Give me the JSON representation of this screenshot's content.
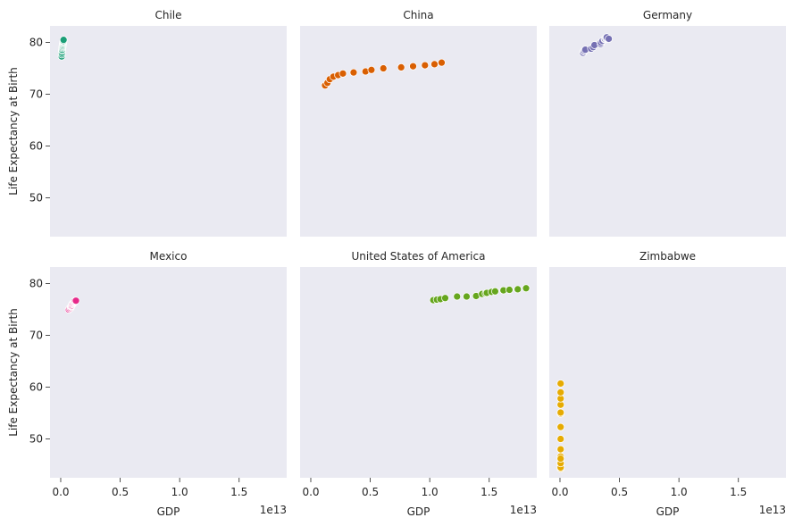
{
  "chart_data": {
    "type": "scatter",
    "layout": "facet-grid 2x3, shared x and y axes",
    "xlabel": "GDP",
    "ylabel": "Life Expectancy at Birth",
    "x_offset_label": "1e13",
    "xlim": [
      -0.09,
      1.9
    ],
    "ylim": [
      42.5,
      83.2
    ],
    "xticks": [
      0.0,
      0.5,
      1.0,
      1.5
    ],
    "xtick_labels": [
      "0.0",
      "0.5",
      "1.0",
      "1.5"
    ],
    "yticks": [
      50,
      60,
      70,
      80
    ],
    "ytick_labels": [
      "50",
      "60",
      "70",
      "80"
    ],
    "grid": false,
    "background": "#eaeaf2",
    "panels": [
      {
        "title": "Chile",
        "color": "#1b9e77",
        "x": [
          0.008,
          0.009,
          0.01,
          0.011,
          0.012,
          0.013,
          0.014,
          0.016,
          0.017,
          0.018,
          0.019,
          0.02,
          0.021,
          0.022,
          0.023,
          0.024
        ],
        "y": [
          77.3,
          77.7,
          78.0,
          78.4,
          78.6,
          78.9,
          79.1,
          79.3,
          79.5,
          79.7,
          79.8,
          80.0,
          80.1,
          80.2,
          80.3,
          80.5
        ]
      },
      {
        "title": "China",
        "color": "#d95f02",
        "x": [
          0.12,
          0.14,
          0.16,
          0.19,
          0.23,
          0.27,
          0.36,
          0.46,
          0.51,
          0.61,
          0.76,
          0.86,
          0.96,
          1.04,
          1.1
        ],
        "y": [
          71.7,
          72.2,
          72.9,
          73.4,
          73.7,
          74.0,
          74.2,
          74.4,
          74.7,
          75.0,
          75.2,
          75.4,
          75.6,
          75.8,
          76.1
        ]
      },
      {
        "title": "Germany",
        "color": "#7570b3",
        "x": [
          0.194,
          0.199,
          0.207,
          0.213,
          0.262,
          0.279,
          0.29,
          0.342,
          0.344,
          0.357,
          0.375,
          0.378,
          0.386,
          0.389,
          0.393,
          0.41
        ],
        "y": [
          78.0,
          78.3,
          78.4,
          78.6,
          78.8,
          79.1,
          79.5,
          79.7,
          80.0,
          80.3,
          80.6,
          80.7,
          80.8,
          80.9,
          81.0,
          80.7
        ]
      },
      {
        "title": "Mexico",
        "color": "#e7298a",
        "x": [
          0.068,
          0.075,
          0.083,
          0.087,
          0.089,
          0.09,
          0.094,
          0.096,
          0.101,
          0.104,
          0.11,
          0.112,
          0.117,
          0.118,
          0.121,
          0.128
        ],
        "y": [
          75.0,
          75.2,
          75.3,
          75.5,
          75.6,
          75.7,
          75.8,
          76.0,
          76.1,
          76.2,
          76.3,
          76.4,
          76.5,
          76.6,
          76.7,
          76.7
        ]
      },
      {
        "title": "United States of America",
        "color": "#66a61e",
        "x": [
          1.03,
          1.06,
          1.09,
          1.13,
          1.23,
          1.31,
          1.39,
          1.44,
          1.47,
          1.48,
          1.52,
          1.55,
          1.62,
          1.67,
          1.74,
          1.81
        ],
        "y": [
          76.8,
          76.9,
          77.0,
          77.2,
          77.5,
          77.5,
          77.6,
          78.0,
          78.1,
          78.2,
          78.4,
          78.5,
          78.7,
          78.8,
          78.9,
          79.1
        ]
      },
      {
        "title": "Zimbabwe",
        "color": "#e6ab02",
        "x": [
          0.0055,
          0.0055,
          0.0055,
          0.0055,
          0.0055,
          0.0055,
          0.0055,
          0.0055,
          0.0055,
          0.0055,
          0.0055,
          0.0055,
          0.0055,
          0.0055,
          0.0055,
          0.0055
        ],
        "y": [
          44.3,
          45.0,
          45.6,
          46.6,
          48.0,
          50.0,
          52.3,
          54.9,
          56.6,
          57.8,
          59.0,
          60.7,
          44.5,
          45.3,
          46.2,
          55.1
        ]
      }
    ]
  }
}
